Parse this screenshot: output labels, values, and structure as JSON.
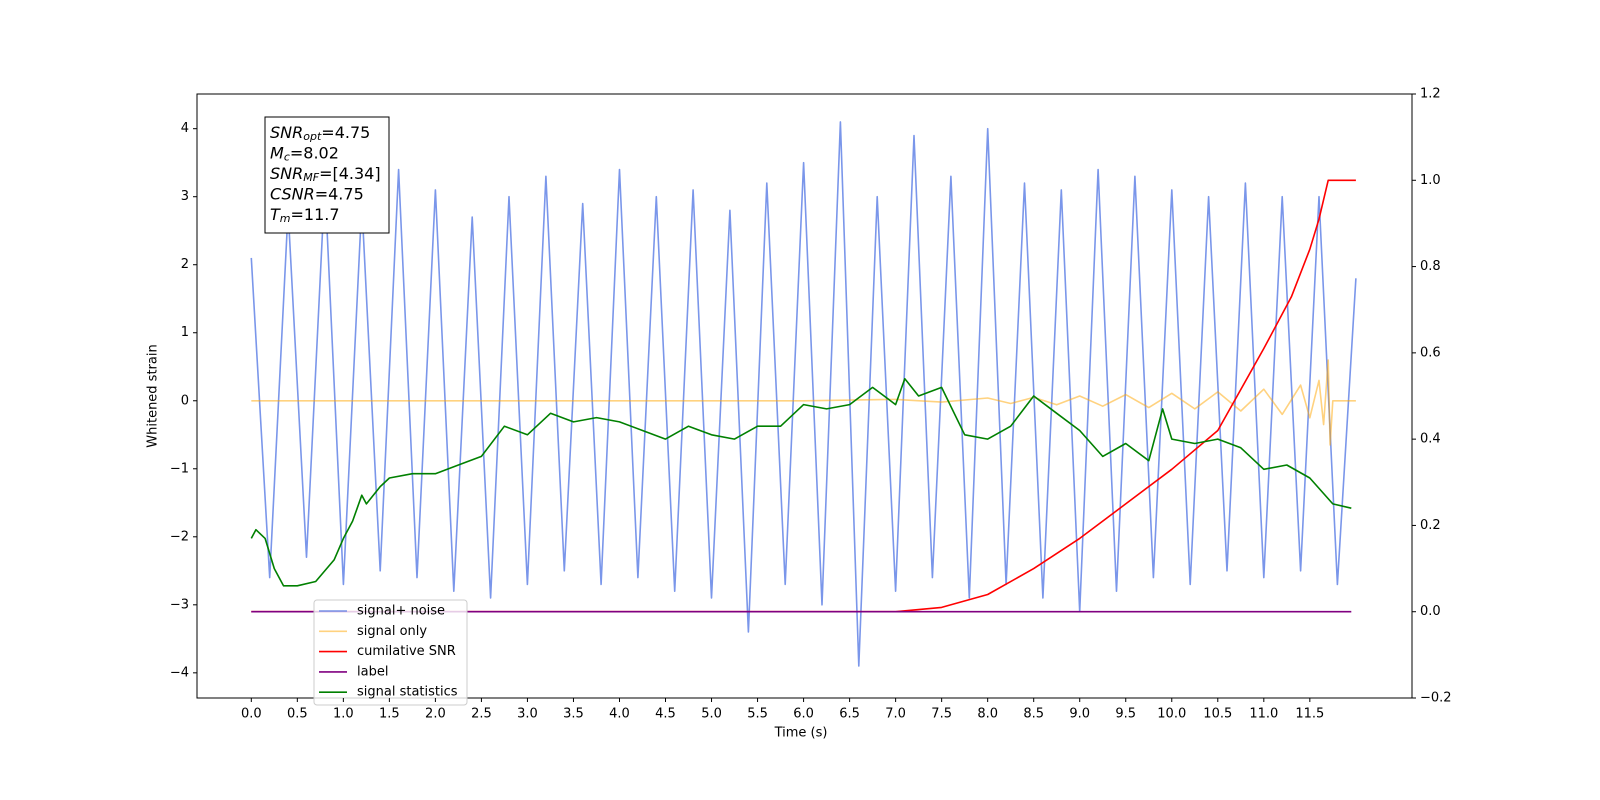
{
  "chart_data": {
    "type": "line",
    "xlabel": "Time (s)",
    "ylabel": "Whitened strain",
    "xlim": [
      -0.59,
      12.61
    ],
    "ylim": [
      -4.37,
      4.51
    ],
    "y2lim": [
      -0.2,
      1.2
    ],
    "xticks": [
      {
        "value": 0,
        "label": "0.0"
      },
      0.5,
      {
        "value": 1,
        "label": "1.0"
      },
      1.5,
      {
        "value": 2,
        "label": "2.0"
      },
      2.5,
      {
        "value": 3,
        "label": "3.0"
      },
      3.5,
      {
        "value": 4,
        "label": "4.0"
      },
      4.5,
      {
        "value": 5,
        "label": "5.0"
      },
      5.5,
      {
        "value": 6,
        "label": "6.0"
      },
      6.5,
      {
        "value": 7,
        "label": "7.0"
      },
      7.5,
      {
        "value": 8,
        "label": "8.0"
      },
      8.5,
      {
        "value": 9,
        "label": "9.0"
      },
      9.5,
      {
        "value": 10,
        "label": "10.0"
      },
      10.5,
      {
        "value": 11,
        "label": "11.0"
      },
      11.5
    ],
    "yticks": [
      {
        "value": -4,
        "label": "−4"
      },
      {
        "value": -3,
        "label": "−3"
      },
      {
        "value": -2,
        "label": "−2"
      },
      {
        "value": -1,
        "label": "−1"
      },
      0,
      1,
      2,
      3,
      4
    ],
    "y2ticks": [
      {
        "value": -0.2,
        "label": "−0.2"
      },
      {
        "value": 0,
        "label": "0.0"
      },
      0.2,
      0.4,
      0.6,
      0.8,
      {
        "value": 1,
        "label": "1.0"
      },
      1.2
    ],
    "legend": "lower left",
    "series": [
      {
        "name": "signal+ noise",
        "color": "#4169e1",
        "opacity": 0.7,
        "x": [
          0,
          0.2,
          0.4,
          0.6,
          0.8,
          1,
          1.2,
          1.4,
          1.6,
          1.8,
          2,
          2.2,
          2.4,
          2.6,
          2.8,
          3,
          3.2,
          3.4,
          3.6,
          3.8,
          4,
          4.2,
          4.4,
          4.6,
          4.8,
          5,
          5.2,
          5.4,
          5.6,
          5.8,
          6,
          6.2,
          6.4,
          6.6,
          6.8,
          7,
          7.2,
          7.4,
          7.6,
          7.8,
          8,
          8.2,
          8.4,
          8.6,
          8.8,
          9,
          9.2,
          9.4,
          9.6,
          9.8,
          10,
          10.2,
          10.4,
          10.6,
          10.8,
          11,
          11.2,
          11.4,
          11.6,
          11.8,
          12
        ],
        "values": [
          2.1,
          -2.6,
          2.8,
          -2.3,
          3.2,
          -2.7,
          2.9,
          -2.5,
          3.4,
          -2.6,
          3.1,
          -2.8,
          2.7,
          -2.9,
          3.0,
          -2.7,
          3.3,
          -2.5,
          2.9,
          -2.7,
          3.4,
          -2.6,
          3.0,
          -2.8,
          3.1,
          -2.9,
          2.8,
          -3.4,
          3.2,
          -2.7,
          3.5,
          -3.0,
          4.1,
          -3.9,
          3.0,
          -2.8,
          3.9,
          -2.6,
          3.3,
          -2.9,
          4.0,
          -2.7,
          3.2,
          -2.9,
          3.1,
          -3.1,
          3.4,
          -2.8,
          3.3,
          -2.6,
          3.1,
          -2.7,
          3.0,
          -2.5,
          3.2,
          -2.6,
          3.0,
          -2.5,
          3.0,
          -2.7,
          1.8
        ]
      },
      {
        "name": "signal only",
        "color": "#ffa500",
        "opacity": 0.5,
        "x": [
          0,
          6,
          7,
          7.5,
          8,
          8.25,
          8.5,
          8.75,
          9,
          9.25,
          9.5,
          9.75,
          10,
          10.25,
          10.5,
          10.75,
          11,
          11.2,
          11.4,
          11.5,
          11.6,
          11.65,
          11.7,
          11.72,
          11.75,
          12
        ],
        "values": [
          0,
          0,
          0.02,
          -0.02,
          0.04,
          -0.04,
          0.05,
          -0.06,
          0.07,
          -0.08,
          0.09,
          -0.1,
          0.11,
          -0.12,
          0.13,
          -0.15,
          0.17,
          -0.2,
          0.23,
          -0.25,
          0.3,
          -0.35,
          0.6,
          -0.65,
          0,
          0
        ]
      },
      {
        "name": "cumilative SNR",
        "color": "#ff0000",
        "axis": "y2",
        "x": [
          0,
          7,
          7.5,
          8,
          8.5,
          9,
          9.5,
          10,
          10.5,
          11,
          11.3,
          11.5,
          11.6,
          11.7,
          12
        ],
        "values": [
          0,
          0,
          0.01,
          0.04,
          0.1,
          0.17,
          0.25,
          0.33,
          0.42,
          0.61,
          0.73,
          0.84,
          0.91,
          1.0,
          1.0
        ]
      },
      {
        "name": "label",
        "color": "#800080",
        "axis": "y2",
        "x": [
          0,
          11.95
        ],
        "values": [
          0,
          0
        ]
      },
      {
        "name": "signal statistics",
        "color": "#008000",
        "axis": "y2",
        "x": [
          0,
          0.05,
          0.15,
          0.25,
          0.35,
          0.5,
          0.7,
          0.9,
          1,
          1.1,
          1.2,
          1.25,
          1.4,
          1.5,
          1.75,
          2,
          2.25,
          2.5,
          2.75,
          3,
          3.25,
          3.5,
          3.75,
          4,
          4.25,
          4.5,
          4.75,
          5,
          5.25,
          5.5,
          5.75,
          6,
          6.25,
          6.5,
          6.75,
          7,
          7.1,
          7.25,
          7.5,
          7.75,
          8,
          8.25,
          8.5,
          8.75,
          9,
          9.25,
          9.5,
          9.75,
          9.9,
          10,
          10.25,
          10.5,
          10.75,
          11,
          11.25,
          11.5,
          11.75,
          11.95
        ],
        "values": [
          0.17,
          0.19,
          0.17,
          0.1,
          0.06,
          0.06,
          0.07,
          0.12,
          0.17,
          0.21,
          0.27,
          0.25,
          0.29,
          0.31,
          0.32,
          0.32,
          0.34,
          0.36,
          0.43,
          0.41,
          0.46,
          0.44,
          0.45,
          0.44,
          0.42,
          0.4,
          0.43,
          0.41,
          0.4,
          0.43,
          0.43,
          0.48,
          0.47,
          0.48,
          0.52,
          0.48,
          0.54,
          0.5,
          0.52,
          0.41,
          0.4,
          0.43,
          0.5,
          0.46,
          0.42,
          0.36,
          0.39,
          0.35,
          0.47,
          0.4,
          0.39,
          0.4,
          0.38,
          0.33,
          0.34,
          0.31,
          0.25,
          0.24
        ]
      }
    ],
    "annotation": [
      {
        "base": "SNR",
        "sub": "opt",
        "text": "=4.75"
      },
      {
        "base": "M",
        "sub": "c",
        "text": "=8.02"
      },
      {
        "base": "SNR",
        "sub": "MF",
        "text": "=[4.34]"
      },
      {
        "base": "CSNR",
        "text": "=4.75"
      },
      {
        "base": "T",
        "sub": "m",
        "text": "=11.7"
      }
    ]
  }
}
